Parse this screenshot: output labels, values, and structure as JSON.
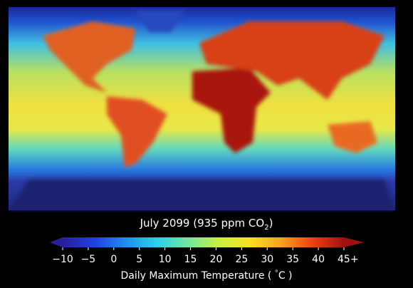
{
  "title": {
    "text": "July 2099 (935 ppm CO",
    "subscript": "2",
    "suffix": ")"
  },
  "colorbar": {
    "range": [
      -10,
      45
    ],
    "ticks": [
      {
        "value": -10,
        "label": "−10"
      },
      {
        "value": -5,
        "label": "−5"
      },
      0,
      5,
      10,
      15,
      20,
      25,
      30,
      35,
      40,
      {
        "value": 45,
        "label": "45+"
      }
    ],
    "colors": [
      "#2a1e9c",
      "#1f3fe0",
      "#1f8cf0",
      "#2ad0e8",
      "#6fe8a0",
      "#c8f040",
      "#f8e020",
      "#f8a020",
      "#f04010",
      "#a01010"
    ],
    "label": {
      "text": "Daily Maximum Temperature ( ",
      "degree": "°",
      "unit": "C )"
    }
  }
}
